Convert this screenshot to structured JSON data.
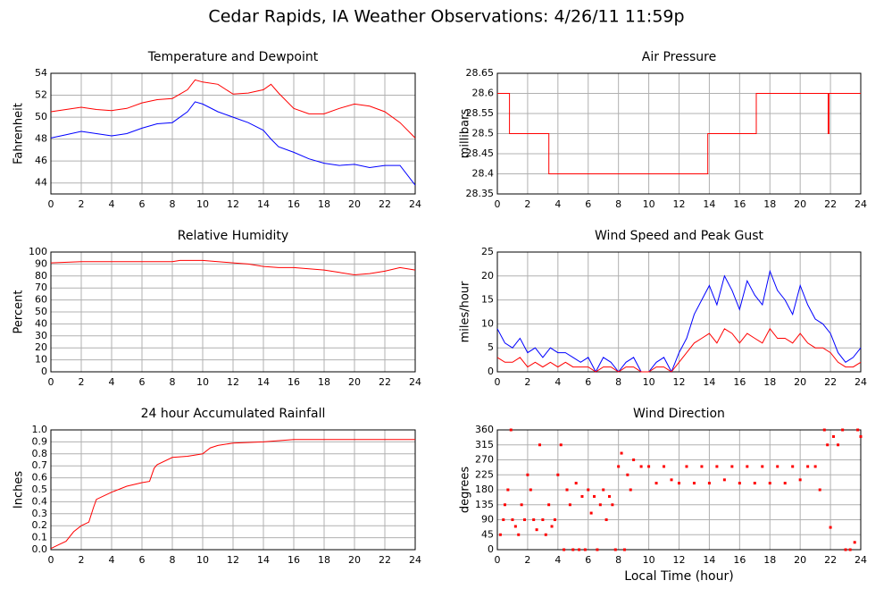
{
  "title": "Cedar Rapids, IA Weather Observations: 4/26/11 11:59p",
  "chart_data": [
    {
      "type": "line",
      "title": "Temperature and Dewpoint",
      "ylabel": "Fahrenheit",
      "x": [
        0,
        1,
        2,
        3,
        4,
        5,
        6,
        7,
        8,
        9,
        9.5,
        10,
        11,
        12,
        13,
        14,
        14.5,
        15,
        16,
        17,
        18,
        19,
        20,
        21,
        22,
        23,
        24
      ],
      "series": [
        {
          "color": "#ff0000",
          "values": [
            50.5,
            50.7,
            50.9,
            50.7,
            50.6,
            50.8,
            51.3,
            51.6,
            51.7,
            52.5,
            53.4,
            53.2,
            53.0,
            52.1,
            52.2,
            52.5,
            53.0,
            52.2,
            50.8,
            50.3,
            50.3,
            50.8,
            51.2,
            51.0,
            50.5,
            49.5,
            48.1
          ]
        },
        {
          "color": "#0000ff",
          "values": [
            48.1,
            48.4,
            48.7,
            48.5,
            48.3,
            48.5,
            49.0,
            49.4,
            49.5,
            50.5,
            51.4,
            51.2,
            50.5,
            50.0,
            49.5,
            48.8,
            48.0,
            47.3,
            46.8,
            46.2,
            45.8,
            45.6,
            45.7,
            45.4,
            45.6,
            45.6,
            43.8
          ]
        }
      ],
      "xlim": [
        0,
        24
      ],
      "xticks": [
        0,
        2,
        4,
        6,
        8,
        10,
        12,
        14,
        16,
        18,
        20,
        22,
        24
      ],
      "ylim": [
        43,
        54
      ],
      "yticks": [
        44,
        46,
        48,
        50,
        52,
        54
      ],
      "grid": true
    },
    {
      "type": "line",
      "title": "Air Pressure",
      "ylabel": "millibars",
      "x": [
        0,
        0.8,
        0.8,
        3.4,
        3.4,
        13.9,
        13.9,
        17.1,
        17.1,
        21.85,
        21.85,
        21.9,
        21.9,
        24
      ],
      "series": [
        {
          "color": "#ff0000",
          "values": [
            28.6,
            28.6,
            28.5,
            28.5,
            28.4,
            28.4,
            28.5,
            28.5,
            28.6,
            28.6,
            28.5,
            28.5,
            28.6,
            28.6
          ]
        }
      ],
      "xlim": [
        0,
        24
      ],
      "xticks": [
        0,
        2,
        4,
        6,
        8,
        10,
        12,
        14,
        16,
        18,
        20,
        22,
        24
      ],
      "ylim": [
        28.35,
        28.65
      ],
      "yticks": [
        28.35,
        28.4,
        28.45,
        28.5,
        28.55,
        28.6,
        28.65
      ],
      "grid": true
    },
    {
      "type": "line",
      "title": "Relative Humidity",
      "ylabel": "Percent",
      "x": [
        0,
        2,
        4,
        6,
        8,
        8.5,
        10,
        11,
        12,
        13,
        14,
        15,
        16,
        17,
        18,
        19,
        20,
        21,
        22,
        23,
        24
      ],
      "series": [
        {
          "color": "#ff0000",
          "values": [
            91,
            92,
            92,
            92,
            92,
            93,
            93,
            92,
            91,
            90,
            88,
            87,
            87,
            86,
            85,
            83,
            81,
            82,
            84,
            87,
            85
          ]
        }
      ],
      "xlim": [
        0,
        24
      ],
      "xticks": [
        0,
        2,
        4,
        6,
        8,
        10,
        12,
        14,
        16,
        18,
        20,
        22,
        24
      ],
      "ylim": [
        0,
        100
      ],
      "yticks": [
        0,
        10,
        20,
        30,
        40,
        50,
        60,
        70,
        80,
        90,
        100
      ],
      "grid": true
    },
    {
      "type": "line",
      "title": "Wind Speed and Peak Gust",
      "ylabel": "miles/hour",
      "x": [
        0,
        0.5,
        1,
        1.5,
        2,
        2.5,
        3,
        3.5,
        4,
        4.5,
        5,
        5.5,
        6,
        6.5,
        7,
        7.5,
        8,
        8.5,
        9,
        9.5,
        10,
        10.5,
        11,
        11.5,
        12,
        12.5,
        13,
        13.5,
        14,
        14.5,
        15,
        15.5,
        16,
        16.5,
        17,
        17.5,
        18,
        18.5,
        19,
        19.5,
        20,
        20.5,
        21,
        21.5,
        22,
        22.5,
        23,
        23.5,
        24
      ],
      "series": [
        {
          "color": "#0000ff",
          "values": [
            9,
            6,
            5,
            7,
            4,
            5,
            3,
            5,
            4,
            4,
            3,
            2,
            3,
            0,
            3,
            2,
            0,
            2,
            3,
            0,
            0,
            2,
            3,
            0,
            4,
            7,
            12,
            15,
            18,
            14,
            20,
            17,
            13,
            19,
            16,
            14,
            21,
            17,
            15,
            12,
            18,
            14,
            11,
            10,
            8,
            4,
            2,
            3,
            5
          ]
        },
        {
          "color": "#ff0000",
          "values": [
            3,
            2,
            2,
            3,
            1,
            2,
            1,
            2,
            1,
            2,
            1,
            1,
            1,
            0,
            1,
            1,
            0,
            1,
            1,
            0,
            0,
            1,
            1,
            0,
            2,
            4,
            6,
            7,
            8,
            6,
            9,
            8,
            6,
            8,
            7,
            6,
            9,
            7,
            7,
            6,
            8,
            6,
            5,
            5,
            4,
            2,
            1,
            1,
            2
          ]
        }
      ],
      "xlim": [
        0,
        24
      ],
      "xticks": [
        0,
        2,
        4,
        6,
        8,
        10,
        12,
        14,
        16,
        18,
        20,
        22,
        24
      ],
      "ylim": [
        0,
        25
      ],
      "yticks": [
        0,
        5,
        10,
        15,
        20,
        25
      ],
      "grid": true
    },
    {
      "type": "line",
      "title": "24 hour Accumulated Rainfall",
      "ylabel": "Inches",
      "x": [
        0,
        0.5,
        1,
        1.5,
        2,
        2.5,
        2.8,
        3,
        4,
        5,
        6,
        6.5,
        6.8,
        7,
        8,
        9,
        10,
        10.5,
        11,
        12,
        14,
        16,
        24
      ],
      "series": [
        {
          "color": "#ff0000",
          "values": [
            0.01,
            0.04,
            0.07,
            0.15,
            0.2,
            0.23,
            0.35,
            0.42,
            0.48,
            0.53,
            0.56,
            0.57,
            0.68,
            0.71,
            0.77,
            0.78,
            0.8,
            0.85,
            0.87,
            0.89,
            0.9,
            0.92,
            0.92
          ]
        }
      ],
      "xlim": [
        0,
        24
      ],
      "xticks": [
        0,
        2,
        4,
        6,
        8,
        10,
        12,
        14,
        16,
        18,
        20,
        22,
        24
      ],
      "ylim": [
        0,
        1
      ],
      "yticks": [
        {
          "value": 0,
          "label": "0.0"
        },
        0.1,
        0.2,
        0.3,
        0.4,
        0.5,
        0.6,
        0.7,
        0.8,
        0.9,
        {
          "value": 1,
          "label": "1.0"
        }
      ],
      "grid": true
    },
    {
      "type": "scatter",
      "title": "Wind Direction",
      "ylabel": "degrees",
      "xlabel": "Local Time (hour)",
      "x": [
        0.2,
        0.4,
        0.5,
        0.7,
        0.9,
        1,
        1.2,
        1.4,
        1.6,
        1.8,
        2,
        2.2,
        2.4,
        2.6,
        2.8,
        3,
        3.2,
        3.4,
        3.6,
        3.8,
        4,
        4.2,
        4.4,
        4.6,
        4.8,
        5,
        5.2,
        5.4,
        5.6,
        5.8,
        6,
        6.2,
        6.4,
        6.6,
        6.8,
        7,
        7.2,
        7.4,
        7.6,
        7.8,
        8,
        8.2,
        8.4,
        8.6,
        8.8,
        9,
        9.5,
        10,
        10.5,
        11,
        11.5,
        12,
        12.5,
        13,
        13.5,
        14,
        14.5,
        15,
        15.5,
        16,
        16.5,
        17,
        17.5,
        18,
        18.5,
        19,
        19.5,
        20,
        20.5,
        21,
        21.3,
        21.6,
        21.8,
        22,
        22.2,
        22.5,
        22.8,
        23,
        23.3,
        23.6,
        23.8,
        24
      ],
      "values": [
        45,
        90,
        135,
        180,
        360,
        90,
        70,
        45,
        135,
        90,
        225,
        180,
        90,
        60,
        315,
        90,
        45,
        135,
        70,
        90,
        225,
        315,
        0,
        180,
        135,
        0,
        200,
        0,
        160,
        0,
        180,
        110,
        160,
        0,
        135,
        180,
        90,
        160,
        135,
        0,
        250,
        290,
        0,
        225,
        180,
        270,
        250,
        250,
        200,
        250,
        210,
        200,
        250,
        200,
        250,
        200,
        250,
        210,
        250,
        200,
        250,
        200,
        250,
        200,
        250,
        200,
        250,
        210,
        250,
        250,
        180,
        360,
        315,
        67,
        340,
        315,
        360,
        0,
        0,
        22,
        360,
        340
      ],
      "color": "#ff0000",
      "xlim": [
        0,
        24
      ],
      "xticks": [
        0,
        2,
        4,
        6,
        8,
        10,
        12,
        14,
        16,
        18,
        20,
        22,
        24
      ],
      "ylim": [
        0,
        360
      ],
      "yticks": [
        0,
        45,
        90,
        135,
        180,
        225,
        270,
        315,
        360
      ],
      "grid": true
    }
  ]
}
